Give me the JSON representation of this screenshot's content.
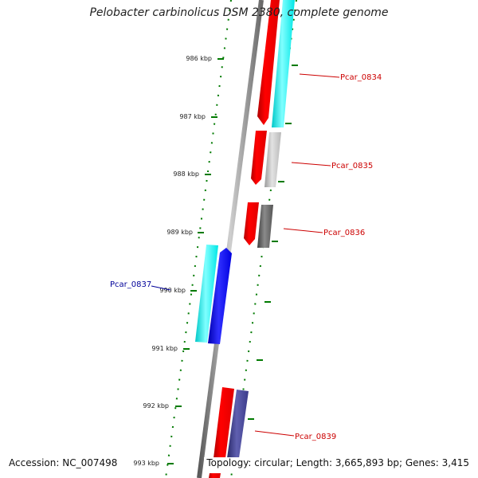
{
  "title": "Pelobacter carbinolicus DSM 2380, complete genome",
  "footer": {
    "accession_label": "Accession:",
    "accession": "NC_007498",
    "topology_label": "Topology:",
    "topology": "circular",
    "length_label": "Length:",
    "length": "3,665,893 bp",
    "genes_label": "Genes:",
    "genes": "3,415"
  },
  "ticks": [
    "986 kbp",
    "987 kbp",
    "988 kbp",
    "989 kbp",
    "990 kbp",
    "991 kbp",
    "992 kbp",
    "993 kbp"
  ],
  "genes": [
    {
      "label": "Pcar_0834",
      "strand": "reverse",
      "label_color": "#cc0000",
      "feature_colors": [
        "#ff0000",
        "#00ffff"
      ]
    },
    {
      "label": "Pcar_0835",
      "strand": "reverse",
      "label_color": "#cc0000",
      "feature_colors": [
        "#ff0000",
        "#c0c0c0"
      ]
    },
    {
      "label": "Pcar_0836",
      "strand": "reverse",
      "label_color": "#cc0000",
      "feature_colors": [
        "#ff0000",
        "#606060"
      ]
    },
    {
      "label": "Pcar_0837",
      "strand": "forward",
      "label_color": "#000099",
      "feature_colors": [
        "#00ffff",
        "#0000ff"
      ]
    },
    {
      "label": "Pcar_0839",
      "strand": "reverse",
      "label_color": "#cc0000",
      "feature_colors": [
        "#ff0000",
        "#3a3a8a"
      ]
    }
  ],
  "colors": {
    "backbone": "#888888",
    "tick": "#007a00",
    "dots": "#007a00"
  }
}
